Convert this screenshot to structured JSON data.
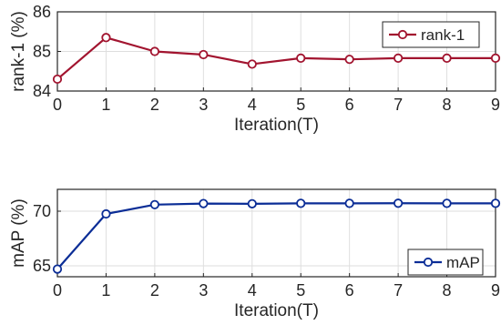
{
  "colors": {
    "rank1": "#A2142F",
    "map": "#0B2D96",
    "grid": "#DEDEDE",
    "axis": "#262626",
    "background": "#FFFFFF"
  },
  "chart_data": [
    {
      "type": "line",
      "xlabel": "Iteration(T)",
      "ylabel": "rank-1 (%)",
      "x": [
        0,
        1,
        2,
        3,
        4,
        5,
        6,
        7,
        8,
        9
      ],
      "xlim": [
        0,
        9
      ],
      "ylim": [
        84,
        86
      ],
      "x_ticks": [
        "0",
        "1",
        "2",
        "3",
        "4",
        "5",
        "6",
        "7",
        "8",
        "9"
      ],
      "y_ticks": [
        "84",
        "85",
        "86"
      ],
      "y_tick_values": [
        84,
        85,
        86
      ],
      "grid": true,
      "legend_position": "top-right",
      "marker": "circle",
      "series": [
        {
          "name": "rank-1",
          "color": "#A2142F",
          "values": [
            84.3,
            85.35,
            85.0,
            84.92,
            84.68,
            84.83,
            84.8,
            84.83,
            84.83,
            84.83
          ]
        }
      ]
    },
    {
      "type": "line",
      "xlabel": "Iteration(T)",
      "ylabel": "mAP (%)",
      "x": [
        0,
        1,
        2,
        3,
        4,
        5,
        6,
        7,
        8,
        9
      ],
      "xlim": [
        0,
        9
      ],
      "ylim": [
        64,
        72
      ],
      "x_ticks": [
        "0",
        "1",
        "2",
        "3",
        "4",
        "5",
        "6",
        "7",
        "8",
        "9"
      ],
      "y_ticks": [
        "65",
        "70"
      ],
      "y_tick_values": [
        65,
        70
      ],
      "grid": true,
      "legend_position": "bottom-right",
      "marker": "circle",
      "series": [
        {
          "name": "mAP",
          "color": "#0B2D96",
          "values": [
            64.7,
            69.75,
            70.6,
            70.7,
            70.68,
            70.72,
            70.72,
            70.73,
            70.72,
            70.72
          ]
        }
      ]
    }
  ]
}
